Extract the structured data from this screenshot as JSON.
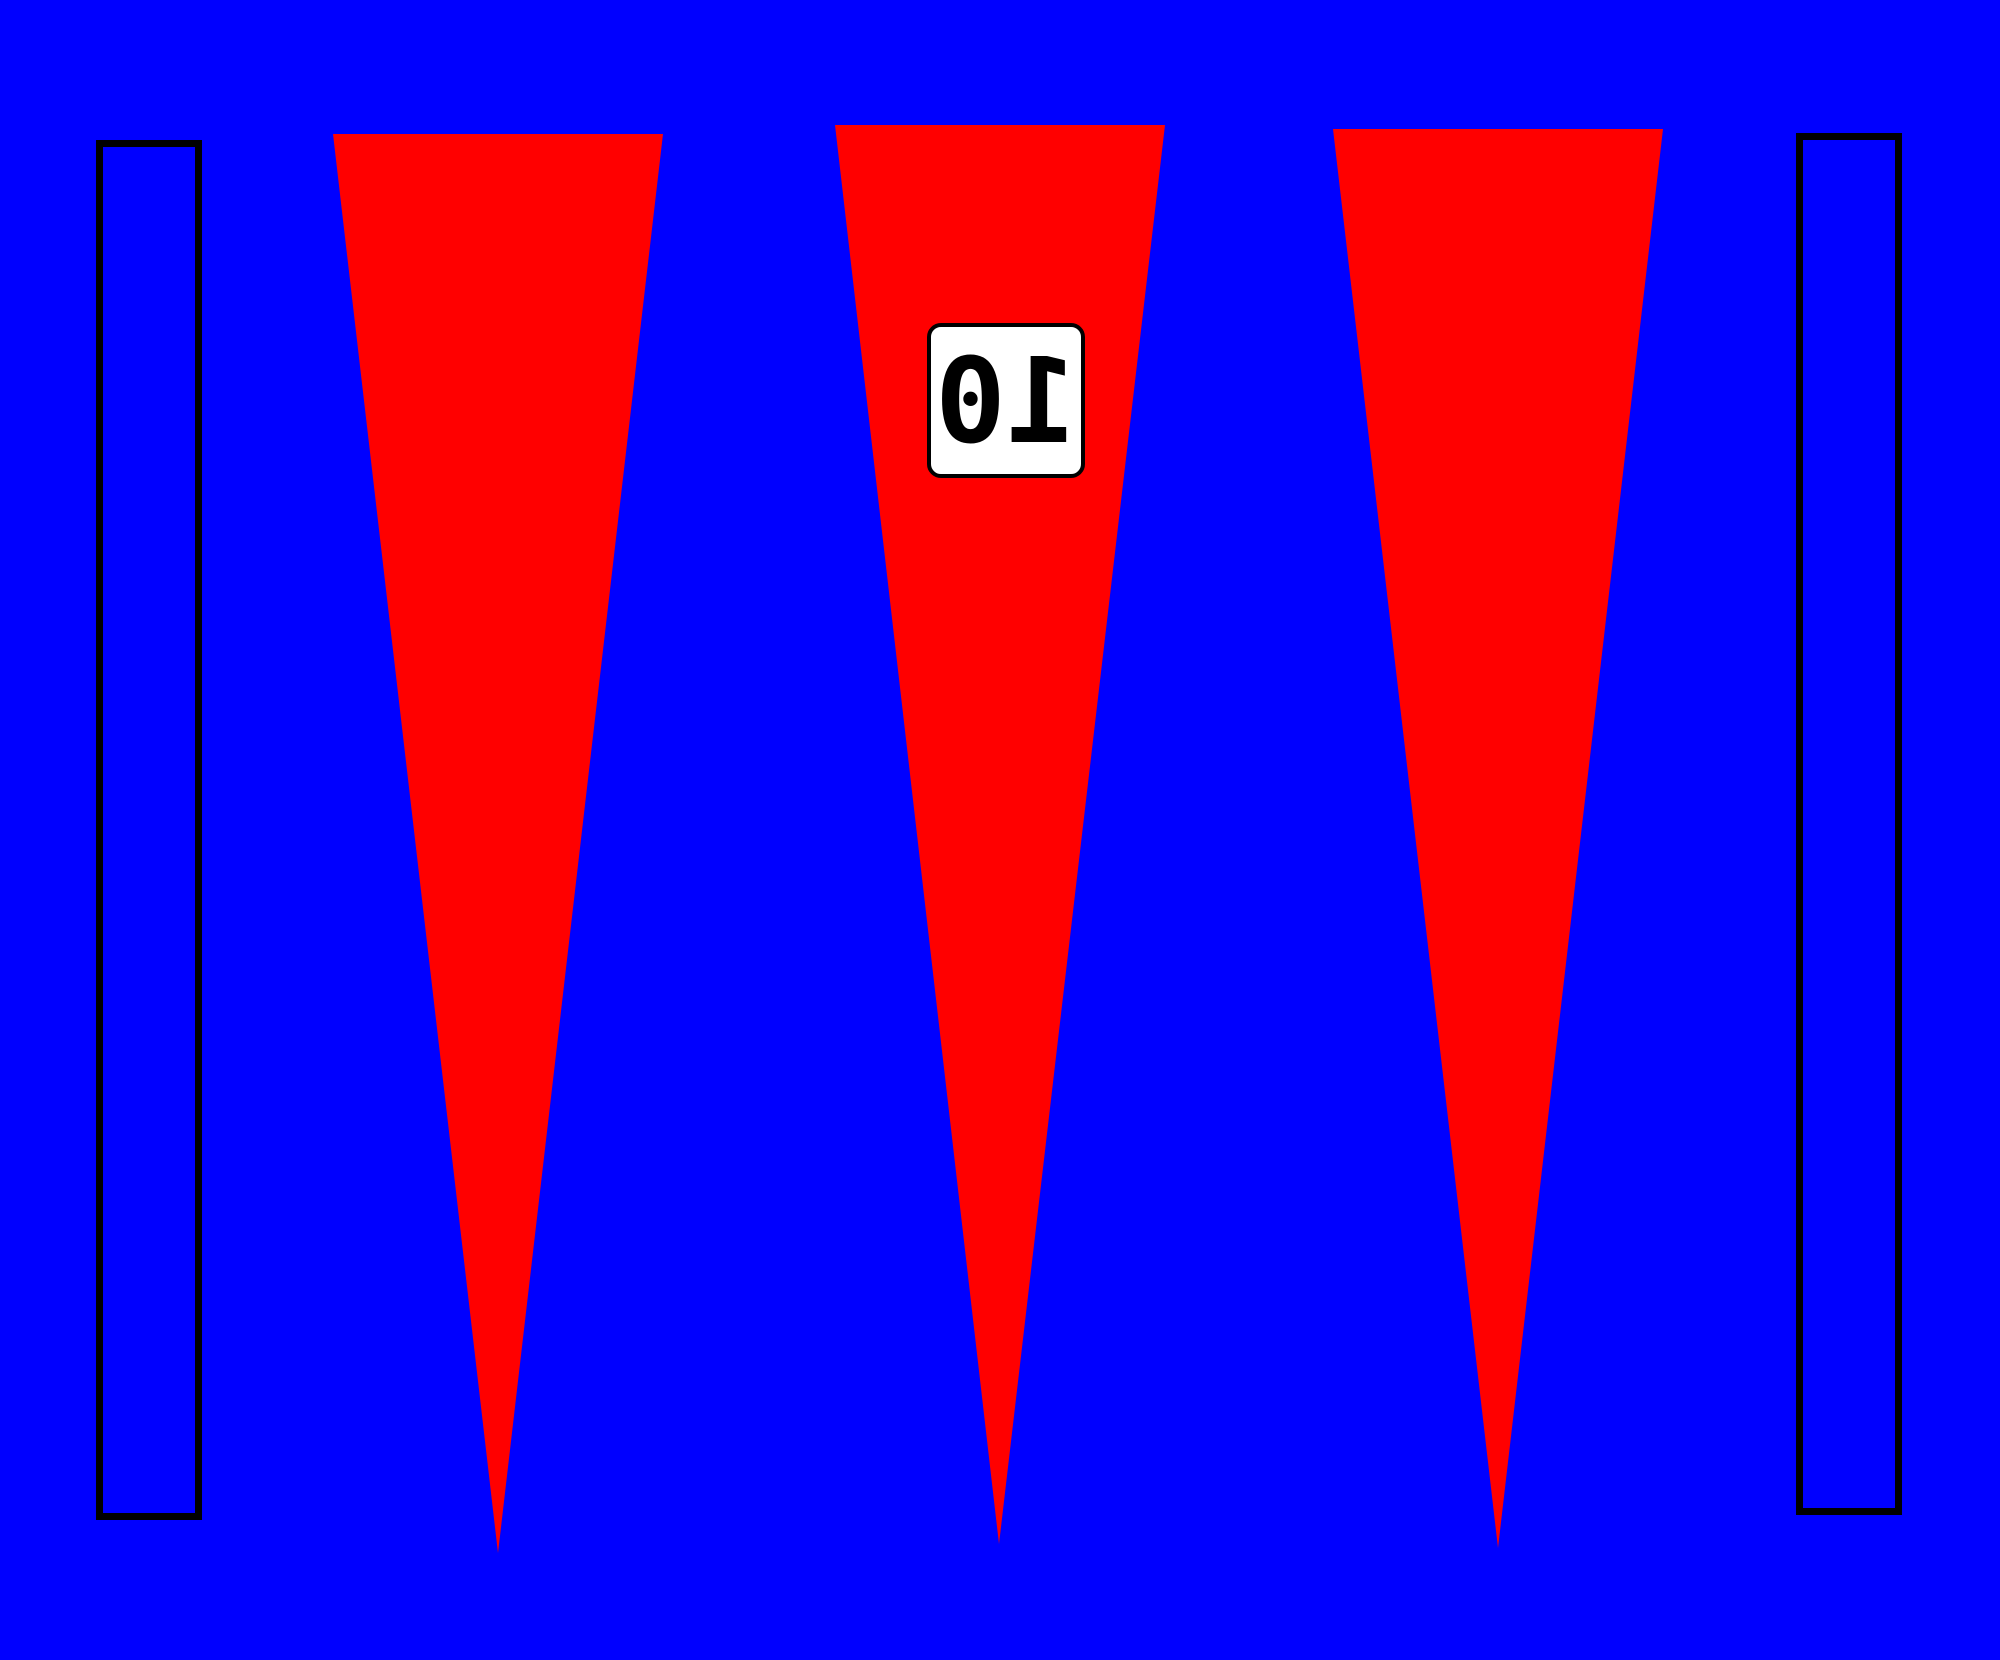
{
  "board": {
    "background_color": "#0000ff",
    "point_color": "#ff0000",
    "tray_border_color": "#000000"
  },
  "points": [
    {
      "id": "point-left",
      "color": "#ff0000"
    },
    {
      "id": "point-middle",
      "color": "#ff0000"
    },
    {
      "id": "point-right",
      "color": "#ff0000"
    }
  ],
  "point_label": {
    "text": "10",
    "mirrored": true
  }
}
